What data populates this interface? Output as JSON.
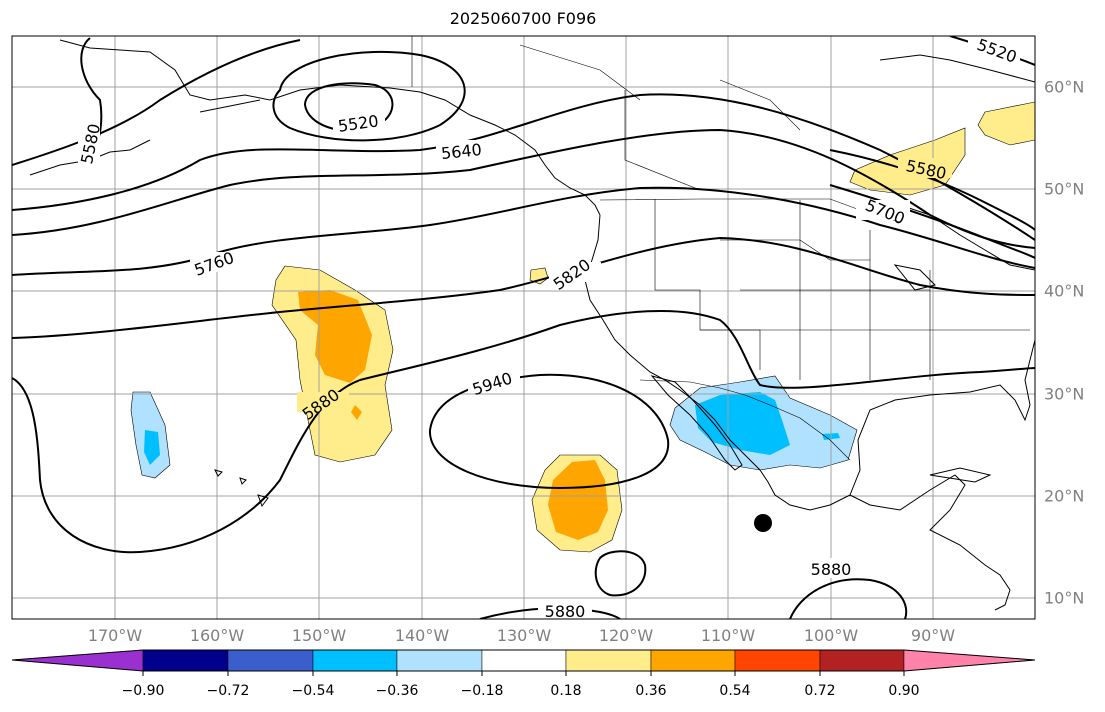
{
  "title": "2025060700 F096",
  "map": {
    "projection": "equirectangular",
    "lon_range_deg": [
      -180,
      -80
    ],
    "lat_range_deg": [
      8,
      65
    ],
    "lon_labels": [
      "170°W",
      "160°W",
      "150°W",
      "140°W",
      "130°W",
      "120°W",
      "110°W",
      "100°W",
      "90°W"
    ],
    "lat_labels": [
      "60°N",
      "50°N",
      "40°N",
      "30°N",
      "20°N",
      "10°N"
    ],
    "contour_labels": [
      "5520",
      "5520",
      "5580",
      "5580",
      "5640",
      "5700",
      "5760",
      "5820",
      "5880",
      "5880",
      "5880",
      "5880",
      "5940"
    ],
    "contour_color": "#000000",
    "coastline_color": "#000000",
    "grid_color": "#a0a0a0",
    "marker": "black filled circle"
  },
  "colorbar": {
    "ticks": [
      "−0.90",
      "−0.72",
      "−0.54",
      "−0.36",
      "−0.18",
      "0.18",
      "0.36",
      "0.54",
      "0.72",
      "0.90"
    ],
    "colors": [
      "#9b30d0",
      "#00008b",
      "#3a5fcd",
      "#00bfff",
      "#b0e2ff",
      "#ffffff",
      "#ffec8b",
      "#ffa500",
      "#ff4500",
      "#b22222",
      "#ff82ab"
    ]
  }
}
